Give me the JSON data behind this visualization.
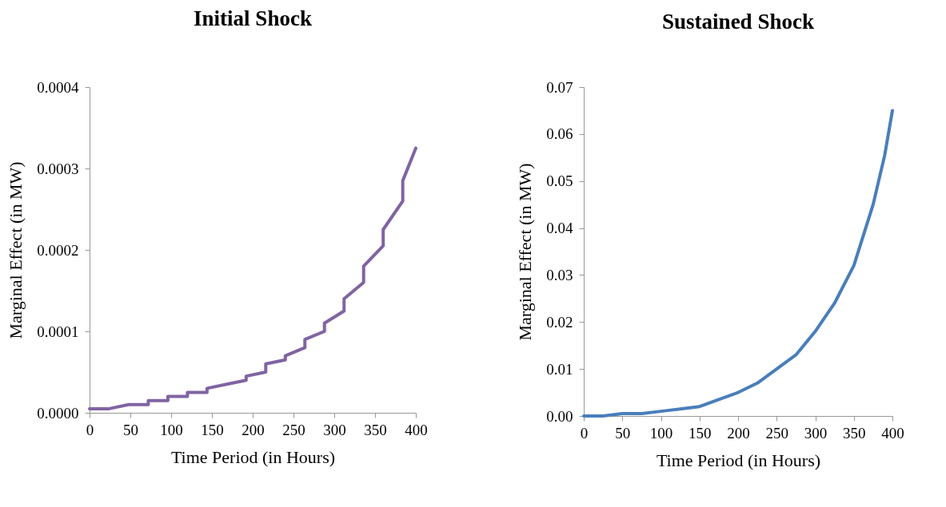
{
  "chart_data": [
    {
      "type": "line",
      "title": "Initial Shock",
      "xlabel": "Time Period (in Hours)",
      "ylabel": "Marginal Effect (in MW)",
      "xlim": [
        0,
        400
      ],
      "xticks": [
        0,
        50,
        100,
        150,
        200,
        250,
        300,
        350,
        400
      ],
      "ylim": [
        0,
        0.0004
      ],
      "yticks": [
        {
          "value": 0,
          "label": "0.0000"
        },
        {
          "value": 0.0001,
          "label": "0.0001"
        },
        {
          "value": 0.0002,
          "label": "0.0002"
        },
        {
          "value": 0.0003,
          "label": "0.0003"
        },
        {
          "value": 0.0004,
          "label": "0.0004"
        }
      ],
      "grid": false,
      "x": [
        0,
        24,
        24,
        48,
        48,
        72,
        72,
        96,
        96,
        120,
        120,
        144,
        144,
        168,
        168,
        192,
        192,
        216,
        216,
        240,
        240,
        264,
        264,
        288,
        288,
        312,
        312,
        336,
        336,
        360,
        360,
        384,
        384,
        400
      ],
      "series": [
        {
          "color": "#8064a2",
          "values": [
            5e-06,
            5e-06,
            5e-06,
            1e-05,
            1e-05,
            1e-05,
            1.5e-05,
            1.5e-05,
            2e-05,
            2e-05,
            2.5e-05,
            2.5e-05,
            3e-05,
            3.5e-05,
            3.5e-05,
            4e-05,
            4.5e-05,
            5e-05,
            6e-05,
            6.5e-05,
            7e-05,
            8e-05,
            9e-05,
            0.0001,
            0.00011,
            0.000125,
            0.00014,
            0.00016,
            0.00018,
            0.000205,
            0.000225,
            0.00026,
            0.000285,
            0.000325
          ]
        }
      ]
    },
    {
      "type": "line",
      "title": "Sustained Shock",
      "xlabel": "Time Period (in Hours)",
      "ylabel": "Marginal Effect (in MW)",
      "xlim": [
        0,
        400
      ],
      "xticks": [
        0,
        50,
        100,
        150,
        200,
        250,
        300,
        350,
        400
      ],
      "ylim": [
        0,
        0.07
      ],
      "yticks": [
        {
          "value": 0,
          "label": "0.00"
        },
        {
          "value": 0.01,
          "label": "0.01"
        },
        {
          "value": 0.02,
          "label": "0.02"
        },
        {
          "value": 0.03,
          "label": "0.03"
        },
        {
          "value": 0.04,
          "label": "0.04"
        },
        {
          "value": 0.05,
          "label": "0.05"
        },
        {
          "value": 0.06,
          "label": "0.06"
        },
        {
          "value": 0.07,
          "label": "0.07"
        }
      ],
      "grid": false,
      "x": [
        0,
        25,
        50,
        75,
        100,
        125,
        150,
        175,
        200,
        225,
        250,
        275,
        300,
        325,
        350,
        375,
        390,
        400
      ],
      "series": [
        {
          "color": "#4a7ebb",
          "values": [
            0,
            0,
            0.0005,
            0.0005,
            0.001,
            0.0015,
            0.002,
            0.0035,
            0.005,
            0.007,
            0.01,
            0.013,
            0.018,
            0.024,
            0.032,
            0.045,
            0.0555,
            0.065
          ]
        }
      ]
    }
  ]
}
